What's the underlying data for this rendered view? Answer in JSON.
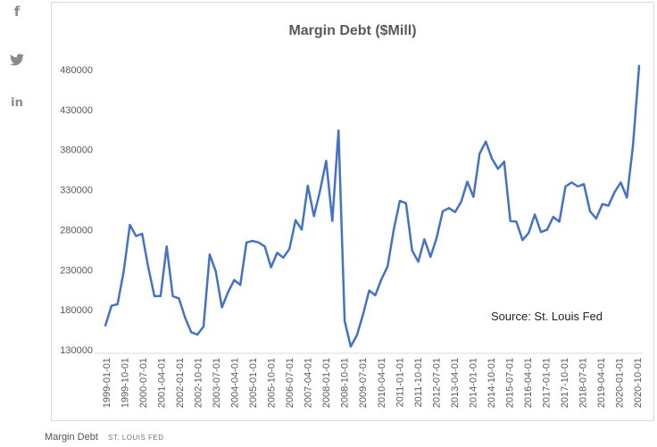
{
  "share": {
    "facebook_icon": "facebook-icon",
    "twitter_icon": "twitter-icon",
    "linkedin_icon": "linkedin-icon",
    "facebook_glyph": "f",
    "linkedin_glyph": "in"
  },
  "caption": {
    "title": "Margin Debt",
    "source": "ST. LOUIS FED"
  },
  "colors": {
    "line": "#4472C4",
    "title": "#595959",
    "axis_text": "#595959",
    "icon": "#8a8a8a"
  },
  "chart_data": {
    "type": "line",
    "title": "Margin Debt ($Mill)",
    "annotation": "Source: St. Louis Fed",
    "xlabel": "",
    "ylabel": "",
    "ylim": [
      130000,
      480000
    ],
    "yticks": [
      130000,
      180000,
      230000,
      280000,
      330000,
      380000,
      430000,
      480000
    ],
    "grid": false,
    "legend": "none",
    "xtick_labels": [
      "1999-01-01",
      "1999-10-01",
      "2000-07-01",
      "2001-04-01",
      "2002-01-01",
      "2002-10-01",
      "2003-07-01",
      "2004-04-01",
      "2005-01-01",
      "2005-10-01",
      "2006-07-01",
      "2007-04-01",
      "2008-01-01",
      "2008-10-01",
      "2009-07-01",
      "2010-04-01",
      "2011-01-01",
      "2011-10-01",
      "2012-07-01",
      "2013-04-01",
      "2014-01-01",
      "2014-10-01",
      "2015-07-01",
      "2016-04-01",
      "2017-01-01",
      "2017-10-01",
      "2018-07-01",
      "2019-04-01",
      "2020-01-01",
      "2020-10-01"
    ],
    "series": [
      {
        "name": "",
        "values": [
          160000,
          185000,
          187000,
          228000,
          286000,
          272000,
          275000,
          233000,
          197000,
          197000,
          259000,
          197000,
          194000,
          170000,
          152000,
          149000,
          159000,
          249000,
          228000,
          183000,
          202000,
          217000,
          211000,
          264000,
          266000,
          264000,
          259000,
          233000,
          251000,
          245000,
          256000,
          292000,
          280000,
          335000,
          297000,
          329000,
          366000,
          291000,
          404000,
          166000,
          134000,
          148000,
          174000,
          204000,
          198000,
          218000,
          234000,
          280000,
          316000,
          313000,
          254000,
          240000,
          268000,
          246000,
          270000,
          303000,
          307000,
          302000,
          315000,
          340000,
          321000,
          375000,
          390000,
          369000,
          356000,
          365000,
          291000,
          290000,
          267000,
          276000,
          299000,
          277000,
          280000,
          296000,
          290000,
          334000,
          339000,
          334000,
          337000,
          303000,
          294000,
          312000,
          310000,
          327000,
          339000,
          320000,
          385000,
          485000
        ]
      }
    ]
  }
}
